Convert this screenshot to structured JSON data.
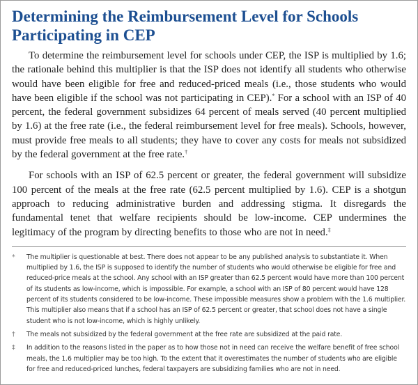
{
  "title": "Determining the Reimbursement Level for Schools Participating in CEP",
  "paragraphs": [
    {
      "text_a": "To determine the reimbursement level for schools under CEP, the ISP is multiplied by 1.6; the rationale behind this multiplier is that the ISP does not identify all students who otherwise would have been eligible for free and reduced-priced meals (i.e., those students who would have been eligible if the school was not participating in CEP).",
      "mark_a": "*",
      "text_b": " For a school with an ISP of 40 percent, the federal government subsidizes 64 percent of meals served (40 percent multiplied by 1.6) at the free rate (i.e., the federal reimbursement level for free meals). Schools, however, must provide free meals to all students; they have to cover any costs for meals not subsidized by the federal government at the free rate.",
      "mark_b": "†"
    },
    {
      "text_a": "For schools with an ISP of 62.5 percent or greater, the federal government will subsidize 100 percent of the meals at the free rate (62.5 percent multiplied by 1.6). CEP is a shotgun approach to reducing administrative burden and addressing stigma. It disregards the fundamental tenet that welfare recipients should be low-income. CEP undermines the legitimacy of the program by directing benefits to those who are not in need.",
      "mark_a": "‡"
    }
  ],
  "footnotes": [
    {
      "mark": "*",
      "text": "The multiplier is questionable at best. There does not appear to be any published analysis to substantiate it. When multiplied by 1.6, the ISP is supposed to identify the number of students who would otherwise be eligible for free and reduced-price meals at the school. Any school with an ISP greater than 62.5 percent would have more than 100 percent of its students as low-income, which is impossible. For example, a school with an ISP of 80 percent would have 128 percent of its students considered to be low-income. These impossible measures show a problem with the 1.6 multiplier. This multiplier also means that if a school has an ISP of 62.5 percent or greater, that school does not have a single student who is not low-income, which is highly unlikely."
    },
    {
      "mark": "†",
      "text": "The meals not subsidized by the federal government at the free rate are subsidized at the paid rate."
    },
    {
      "mark": "‡",
      "text": "In addition to the reasons listed in the paper as to how those not in need can receive the welfare benefit of free school meals, the 1.6 multiplier may be too high. To the extent that it overestimates the number of students who are eligible for free and reduced-priced lunches, federal taxpayers are subsidizing families who are not in need."
    }
  ],
  "colors": {
    "title": "#1d4f91",
    "text": "#222222",
    "rule": "#888888"
  }
}
